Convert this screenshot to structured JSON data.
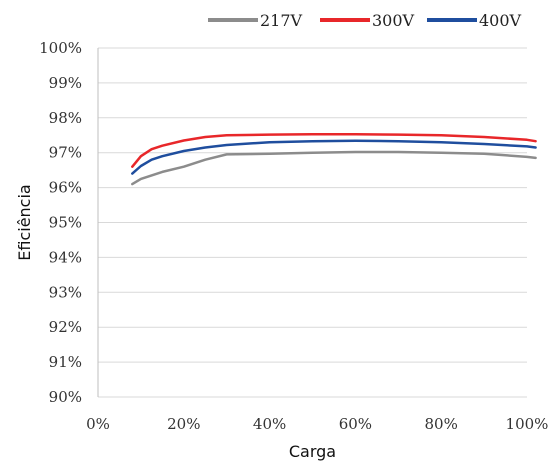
{
  "chart_data": {
    "type": "line",
    "xlabel": "Carga",
    "ylabel": "Eficiência",
    "xlim": [
      0,
      100
    ],
    "ylim": [
      90,
      100
    ],
    "x_ticks": [
      {
        "value": 0,
        "label": "0%"
      },
      {
        "value": 20,
        "label": "20%"
      },
      {
        "value": 40,
        "label": "40%"
      },
      {
        "value": 60,
        "label": "60%"
      },
      {
        "value": 80,
        "label": "80%"
      },
      {
        "value": 100,
        "label": "100%"
      }
    ],
    "y_ticks": [
      {
        "value": 90,
        "label": "90%"
      },
      {
        "value": 91,
        "label": "91%"
      },
      {
        "value": 92,
        "label": "92%"
      },
      {
        "value": 93,
        "label": "93%"
      },
      {
        "value": 94,
        "label": "94%"
      },
      {
        "value": 95,
        "label": "95%"
      },
      {
        "value": 96,
        "label": "96%"
      },
      {
        "value": 97,
        "label": "97%"
      },
      {
        "value": 98,
        "label": "98%"
      },
      {
        "value": 99,
        "label": "99%"
      },
      {
        "value": 100,
        "label": "100%"
      }
    ],
    "grid": "horizontal",
    "legend_position": "top-right",
    "series": [
      {
        "name": "217V",
        "color": "#8c8c8c",
        "points": [
          [
            8,
            96.1
          ],
          [
            10,
            96.25
          ],
          [
            12.5,
            96.35
          ],
          [
            15,
            96.45
          ],
          [
            20,
            96.6
          ],
          [
            25,
            96.8
          ],
          [
            30,
            96.95
          ],
          [
            40,
            96.97
          ],
          [
            50,
            97.0
          ],
          [
            60,
            97.02
          ],
          [
            70,
            97.02
          ],
          [
            80,
            97.0
          ],
          [
            90,
            96.97
          ],
          [
            100,
            96.88
          ],
          [
            102,
            96.85
          ]
        ]
      },
      {
        "name": "300V",
        "color": "#e8272a",
        "points": [
          [
            8,
            96.6
          ],
          [
            10,
            96.9
          ],
          [
            12.5,
            97.1
          ],
          [
            15,
            97.2
          ],
          [
            20,
            97.35
          ],
          [
            25,
            97.45
          ],
          [
            30,
            97.5
          ],
          [
            40,
            97.52
          ],
          [
            50,
            97.53
          ],
          [
            60,
            97.53
          ],
          [
            70,
            97.52
          ],
          [
            80,
            97.5
          ],
          [
            90,
            97.45
          ],
          [
            100,
            97.37
          ],
          [
            102,
            97.33
          ]
        ]
      },
      {
        "name": "400V",
        "color": "#1f4e9e",
        "points": [
          [
            8,
            96.4
          ],
          [
            10,
            96.62
          ],
          [
            12.5,
            96.8
          ],
          [
            15,
            96.9
          ],
          [
            20,
            97.05
          ],
          [
            25,
            97.15
          ],
          [
            30,
            97.22
          ],
          [
            40,
            97.3
          ],
          [
            50,
            97.33
          ],
          [
            60,
            97.34
          ],
          [
            70,
            97.33
          ],
          [
            80,
            97.3
          ],
          [
            90,
            97.25
          ],
          [
            100,
            97.18
          ],
          [
            102,
            97.15
          ]
        ]
      }
    ]
  }
}
